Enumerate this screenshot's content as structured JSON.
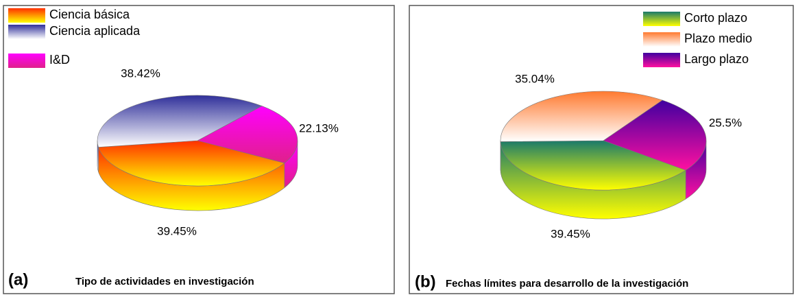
{
  "chart_data": [
    {
      "type": "pie3d",
      "panel_label": "(a)",
      "title": "Tipo de actividades en investigación",
      "categories": [
        "Ciencia básica",
        "Ciencia  aplicada",
        "I&D"
      ],
      "values": [
        39.45,
        38.42,
        22.13
      ],
      "value_labels": [
        "39.45%",
        "38.42%",
        "22.13%"
      ],
      "gradients": [
        [
          "#ff3000",
          "#ffff00"
        ],
        [
          "#30309a",
          "#ffffff"
        ],
        [
          "#ff00ff",
          "#e0208a"
        ]
      ]
    },
    {
      "type": "pie3d",
      "panel_label": "(b)",
      "title": "Fechas límites para desarrollo de  la investigación",
      "categories": [
        "Corto plazo",
        "Plazo medio",
        "Largo plazo"
      ],
      "values": [
        39.45,
        35.04,
        25.5
      ],
      "value_labels": [
        "39.45%",
        "35.04%",
        "25.5%"
      ],
      "gradients": [
        [
          "#1a7a6a",
          "#ffff00"
        ],
        [
          "#ff7a30",
          "#ffffff"
        ],
        [
          "#4000a0",
          "#ff10a0"
        ]
      ]
    }
  ]
}
